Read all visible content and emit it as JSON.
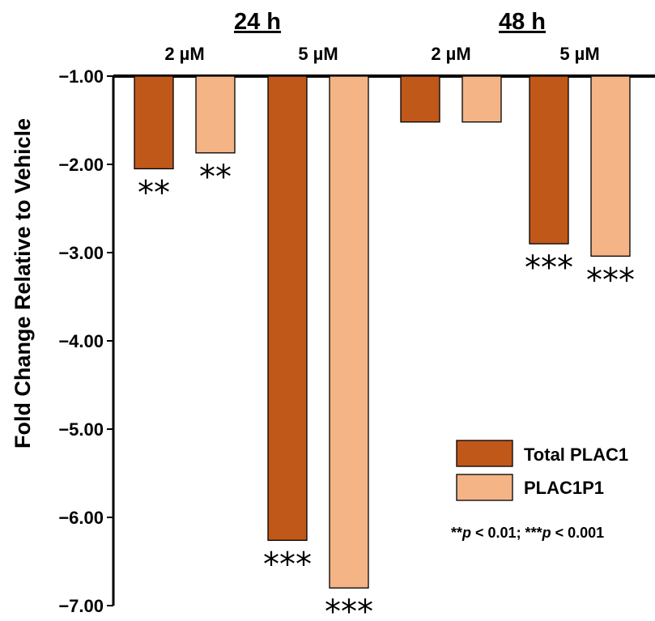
{
  "chart_data": {
    "type": "bar",
    "ylabel": "Fold Change Relative to Vehicle",
    "ylim": [
      -7.0,
      -1.0
    ],
    "yticks": [
      "−1.00",
      "−2.00",
      "−3.00",
      "−4.00",
      "−5.00",
      "−6.00",
      "−7.00"
    ],
    "ytick_values": [
      -1,
      -2,
      -3,
      -4,
      -5,
      -6,
      -7
    ],
    "time_groups": [
      "24 h",
      "48 h"
    ],
    "dose_groups": [
      "2 µM",
      "5 µM",
      "2 µM",
      "5 µM"
    ],
    "categories": [
      "24 h 2 µM",
      "24 h 5 µM",
      "48 h 2 µM",
      "48 h 5 µM"
    ],
    "series": [
      {
        "name": "Total PLAC1",
        "color": "#C0581A",
        "values": [
          -2.05,
          -6.26,
          -1.52,
          -2.9
        ],
        "significance": [
          "**",
          "***",
          "",
          "***"
        ]
      },
      {
        "name": "PLAC1P1",
        "color": "#F4B486",
        "values": [
          -1.87,
          -6.8,
          -1.52,
          -3.04
        ],
        "significance": [
          "**",
          "***",
          "",
          "***"
        ]
      }
    ],
    "legend_position": "bottom-right",
    "footnote": "**p < 0.01; ***p < 0.001",
    "grid": false
  }
}
